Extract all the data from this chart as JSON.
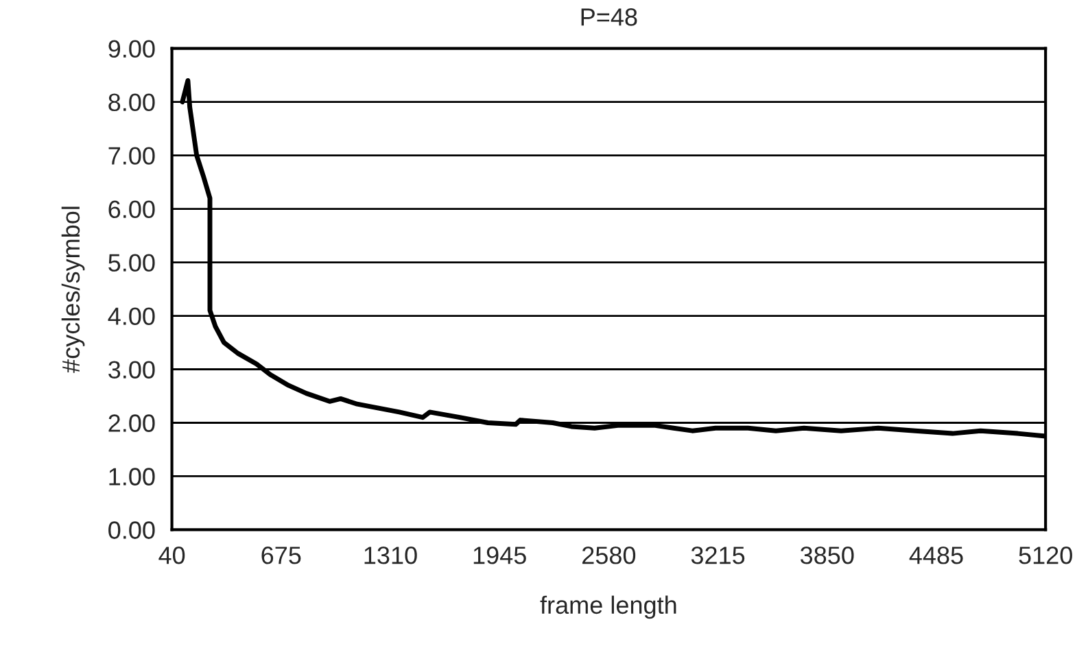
{
  "chart_data": {
    "type": "line",
    "title": "P=48",
    "xlabel": "frame length",
    "ylabel": "#cycles/symbol",
    "xlim": [
      40,
      5120
    ],
    "xticks": [
      40,
      675,
      1310,
      1945,
      2580,
      3215,
      3850,
      4485,
      5120
    ],
    "ylim": [
      0,
      9
    ],
    "yticks": [
      {
        "value": 0,
        "label": "0.00"
      },
      {
        "value": 1,
        "label": "1.00"
      },
      {
        "value": 2,
        "label": "2.00"
      },
      {
        "value": 3,
        "label": "3.00"
      },
      {
        "value": 4,
        "label": "4.00"
      },
      {
        "value": 5,
        "label": "5.00"
      },
      {
        "value": 6,
        "label": "6.00"
      },
      {
        "value": 7,
        "label": "7.00"
      },
      {
        "value": 8,
        "label": "8.00"
      },
      {
        "value": 9,
        "label": "9.00"
      }
    ],
    "grid": "y",
    "line_style": "solid",
    "series": [
      {
        "color": "#000000",
        "x": [
          101,
          133,
          144,
          184,
          224,
          261,
          261,
          293,
          343,
          423,
          532,
          612,
          718,
          822,
          957,
          1021,
          1117,
          1200,
          1362,
          1498,
          1539,
          1714,
          1877,
          2039,
          2066,
          2255,
          2363,
          2498,
          2633,
          2850,
          2957,
          3066,
          3201,
          3390,
          3552,
          3715,
          3931,
          4147,
          4363,
          4579,
          4742,
          4958,
          5120
        ],
        "values": [
          8.0,
          8.4,
          7.9,
          7.0,
          6.6,
          6.2,
          4.1,
          3.8,
          3.5,
          3.3,
          3.1,
          2.9,
          2.7,
          2.55,
          2.4,
          2.45,
          2.35,
          2.3,
          2.2,
          2.1,
          2.2,
          2.1,
          2.0,
          1.97,
          2.05,
          2.0,
          1.93,
          1.9,
          1.95,
          1.95,
          1.9,
          1.85,
          1.9,
          1.9,
          1.85,
          1.9,
          1.85,
          1.9,
          1.85,
          1.8,
          1.85,
          1.8,
          1.75
        ]
      }
    ]
  }
}
